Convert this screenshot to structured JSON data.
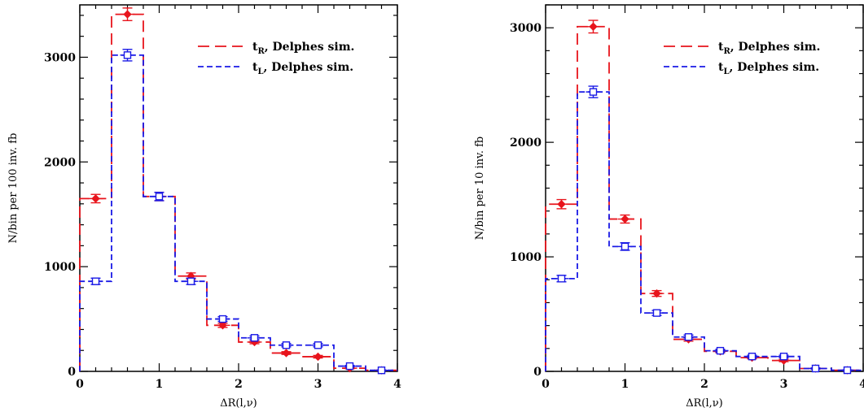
{
  "chart_data": [
    {
      "type": "histogram",
      "xlabel": "ΔR(l,ν)",
      "ylabel": "N/bin per 100 inv. fb",
      "xlim": [
        0,
        4
      ],
      "ylim": [
        0,
        3500
      ],
      "x_ticks": [
        0,
        1,
        2,
        3,
        4
      ],
      "y_ticks": [
        0,
        1000,
        2000,
        3000
      ],
      "legend_position": "top-right",
      "bin_edges": [
        0,
        0.4,
        0.8,
        1.2,
        1.6,
        2.0,
        2.4,
        2.8,
        3.2,
        3.6,
        4.0
      ],
      "series": [
        {
          "name": "t_R, Delphes sim.",
          "legend_main": "t",
          "legend_sub": "R",
          "legend_rest": ", Delphes sim.",
          "color": "#e8141c",
          "dash": "long",
          "marker": "diamond",
          "values": [
            1650,
            3410,
            1670,
            910,
            440,
            280,
            175,
            140,
            30,
            10
          ],
          "errors": [
            40,
            60,
            40,
            30,
            20,
            16,
            13,
            12,
            5,
            3
          ]
        },
        {
          "name": "t_L, Delphes sim.",
          "legend_main": "t",
          "legend_sub": "L",
          "legend_rest": ", Delphes sim.",
          "color": "#1a1ae6",
          "dash": "short",
          "marker": "square",
          "values": [
            860,
            3020,
            1670,
            860,
            500,
            320,
            250,
            250,
            50,
            10
          ],
          "errors": [
            30,
            55,
            40,
            30,
            22,
            18,
            16,
            16,
            7,
            3
          ]
        }
      ]
    },
    {
      "type": "histogram",
      "xlabel": "ΔR(l,ν)",
      "ylabel": "N/bin per 10 inv. fb",
      "xlim": [
        0,
        4
      ],
      "ylim": [
        0,
        3200
      ],
      "x_ticks": [
        0,
        1,
        2,
        3,
        4
      ],
      "y_ticks": [
        0,
        1000,
        2000,
        3000
      ],
      "legend_position": "top-right",
      "bin_edges": [
        0,
        0.4,
        0.8,
        1.2,
        1.6,
        2.0,
        2.4,
        2.8,
        3.2,
        3.6,
        4.0
      ],
      "series": [
        {
          "name": "t_R, Delphes sim.",
          "legend_main": "t",
          "legend_sub": "R",
          "legend_rest": ", Delphes sim.",
          "color": "#e8141c",
          "dash": "long",
          "marker": "diamond",
          "values": [
            1460,
            3010,
            1330,
            680,
            280,
            175,
            120,
            95,
            25,
            10
          ],
          "errors": [
            40,
            55,
            35,
            25,
            16,
            13,
            11,
            10,
            5,
            3
          ]
        },
        {
          "name": "t_L, Delphes sim.",
          "legend_main": "t",
          "legend_sub": "L",
          "legend_rest": ", Delphes sim.",
          "color": "#1a1ae6",
          "dash": "short",
          "marker": "square",
          "values": [
            810,
            2440,
            1090,
            510,
            300,
            180,
            130,
            130,
            25,
            10
          ],
          "errors": [
            28,
            50,
            33,
            22,
            17,
            13,
            11,
            11,
            5,
            3
          ]
        }
      ]
    }
  ]
}
